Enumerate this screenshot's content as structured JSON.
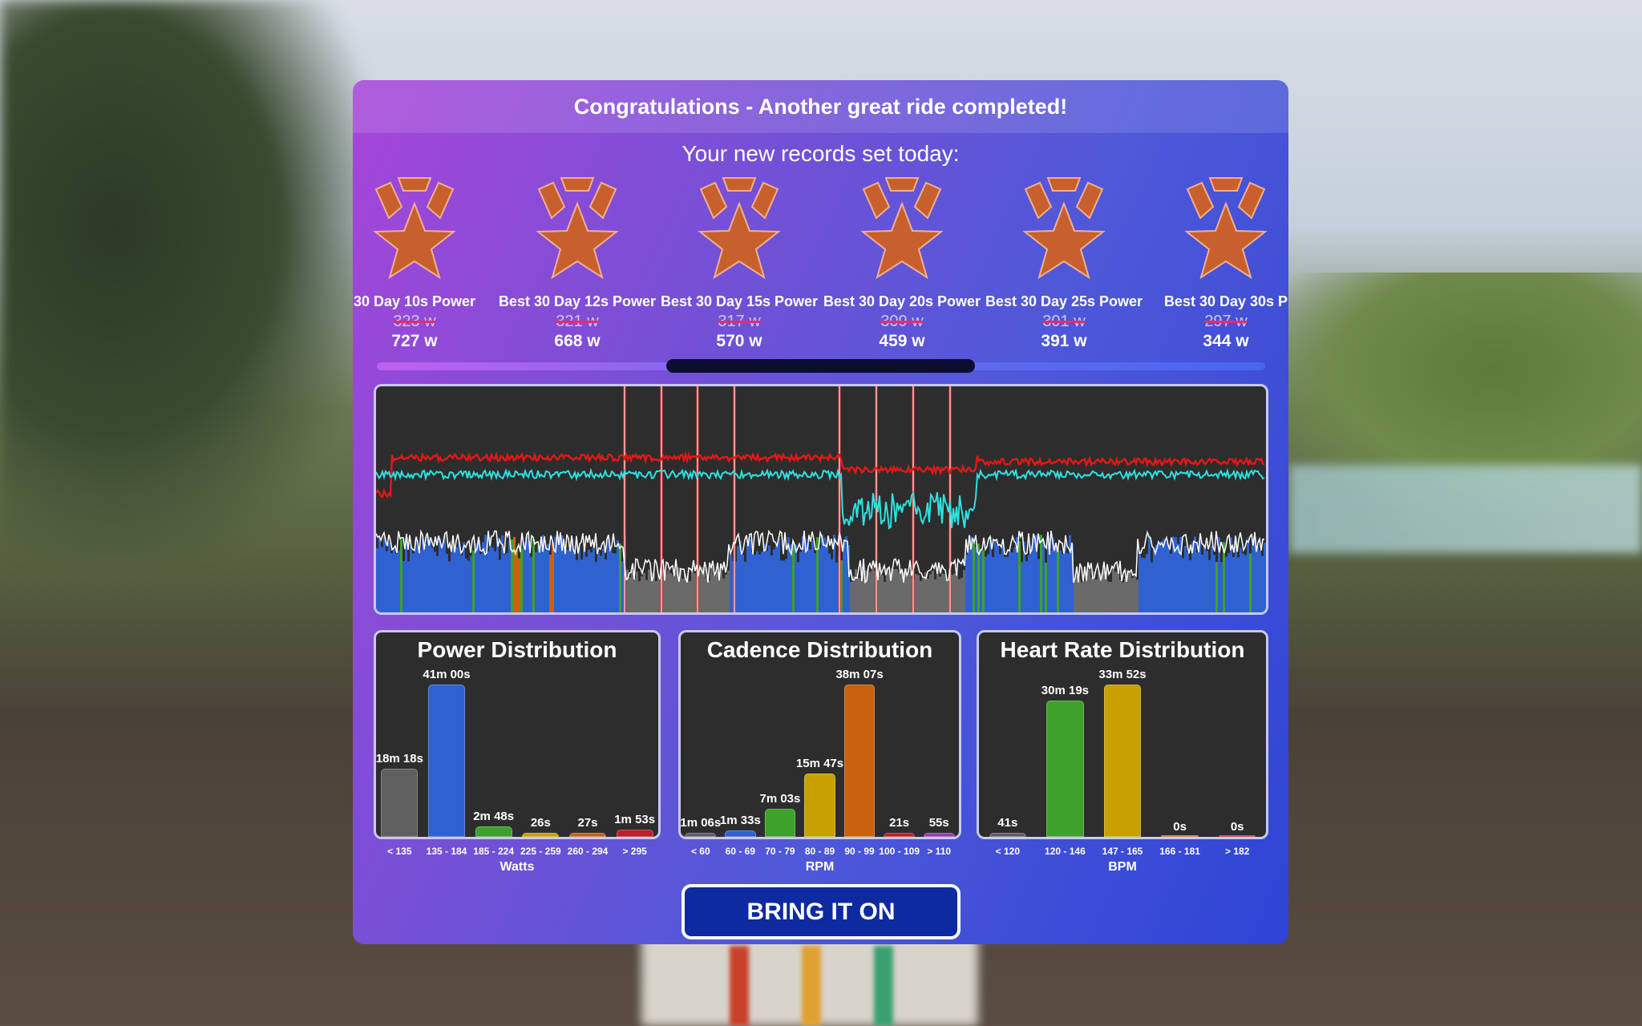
{
  "header": {
    "title": "Congratulations - Another great ride completed!"
  },
  "records": {
    "subtitle": "Your new records set today:",
    "items": [
      {
        "label": "30 Day 10s Power",
        "old": "323 w",
        "new": "727 w"
      },
      {
        "label": "Best 30 Day 12s Power",
        "old": "321 w",
        "new": "668 w"
      },
      {
        "label": "Best 30 Day 15s Power",
        "old": "317 w",
        "new": "570 w"
      },
      {
        "label": "Best 30 Day 20s Power",
        "old": "309 w",
        "new": "459 w"
      },
      {
        "label": "Best 30 Day 25s Power",
        "old": "301 w",
        "new": "391 w"
      },
      {
        "label": "Best 30 Day 30s P",
        "old": "297 w",
        "new": "344 w"
      }
    ],
    "medal_color": "#c8602e",
    "scroll_position": 0.42
  },
  "distributions": [
    {
      "title": "Power Distribution",
      "unit": "Watts",
      "bins": [
        {
          "range": "< 135",
          "time": "18m 18s",
          "seconds": 1098,
          "color": "#5f5f5f"
        },
        {
          "range": "135 - 184",
          "time": "41m 00s",
          "seconds": 2460,
          "color": "#2f62d0"
        },
        {
          "range": "185 - 224",
          "time": "2m 48s",
          "seconds": 168,
          "color": "#3ea12a"
        },
        {
          "range": "225 - 259",
          "time": "26s",
          "seconds": 26,
          "color": "#c7a000"
        },
        {
          "range": "260 - 294",
          "time": "27s",
          "seconds": 27,
          "color": "#c8620e"
        },
        {
          "range": "> 295",
          "time": "1m 53s",
          "seconds": 113,
          "color": "#c0201e"
        }
      ]
    },
    {
      "title": "Cadence Distribution",
      "unit": "RPM",
      "bins": [
        {
          "range": "< 60",
          "time": "1m 06s",
          "seconds": 66,
          "color": "#5f5f5f"
        },
        {
          "range": "60 - 69",
          "time": "1m 33s",
          "seconds": 93,
          "color": "#2f62d0"
        },
        {
          "range": "70 - 79",
          "time": "7m 03s",
          "seconds": 423,
          "color": "#3ea12a"
        },
        {
          "range": "80 - 89",
          "time": "15m 47s",
          "seconds": 947,
          "color": "#c7a000"
        },
        {
          "range": "90 - 99",
          "time": "38m 07s",
          "seconds": 2287,
          "color": "#c8620e"
        },
        {
          "range": "100 - 109",
          "time": "21s",
          "seconds": 21,
          "color": "#c0201e"
        },
        {
          "range": "> 110",
          "time": "55s",
          "seconds": 55,
          "color": "#9a3ab0"
        }
      ]
    },
    {
      "title": "Heart Rate Distribution",
      "unit": "BPM",
      "bins": [
        {
          "range": "< 120",
          "time": "41s",
          "seconds": 41,
          "color": "#5f5f5f"
        },
        {
          "range": "120 - 146",
          "time": "30m 19s",
          "seconds": 1819,
          "color": "#3ea12a"
        },
        {
          "range": "147 - 165",
          "time": "33m 52s",
          "seconds": 2032,
          "color": "#c7a000"
        },
        {
          "range": "166 - 181",
          "time": "0s",
          "seconds": 0,
          "color": "#c8620e"
        },
        {
          "range": "> 182",
          "time": "0s",
          "seconds": 0,
          "color": "#c0201e"
        }
      ]
    }
  ],
  "footer": {
    "button": "BRING IT ON"
  }
}
